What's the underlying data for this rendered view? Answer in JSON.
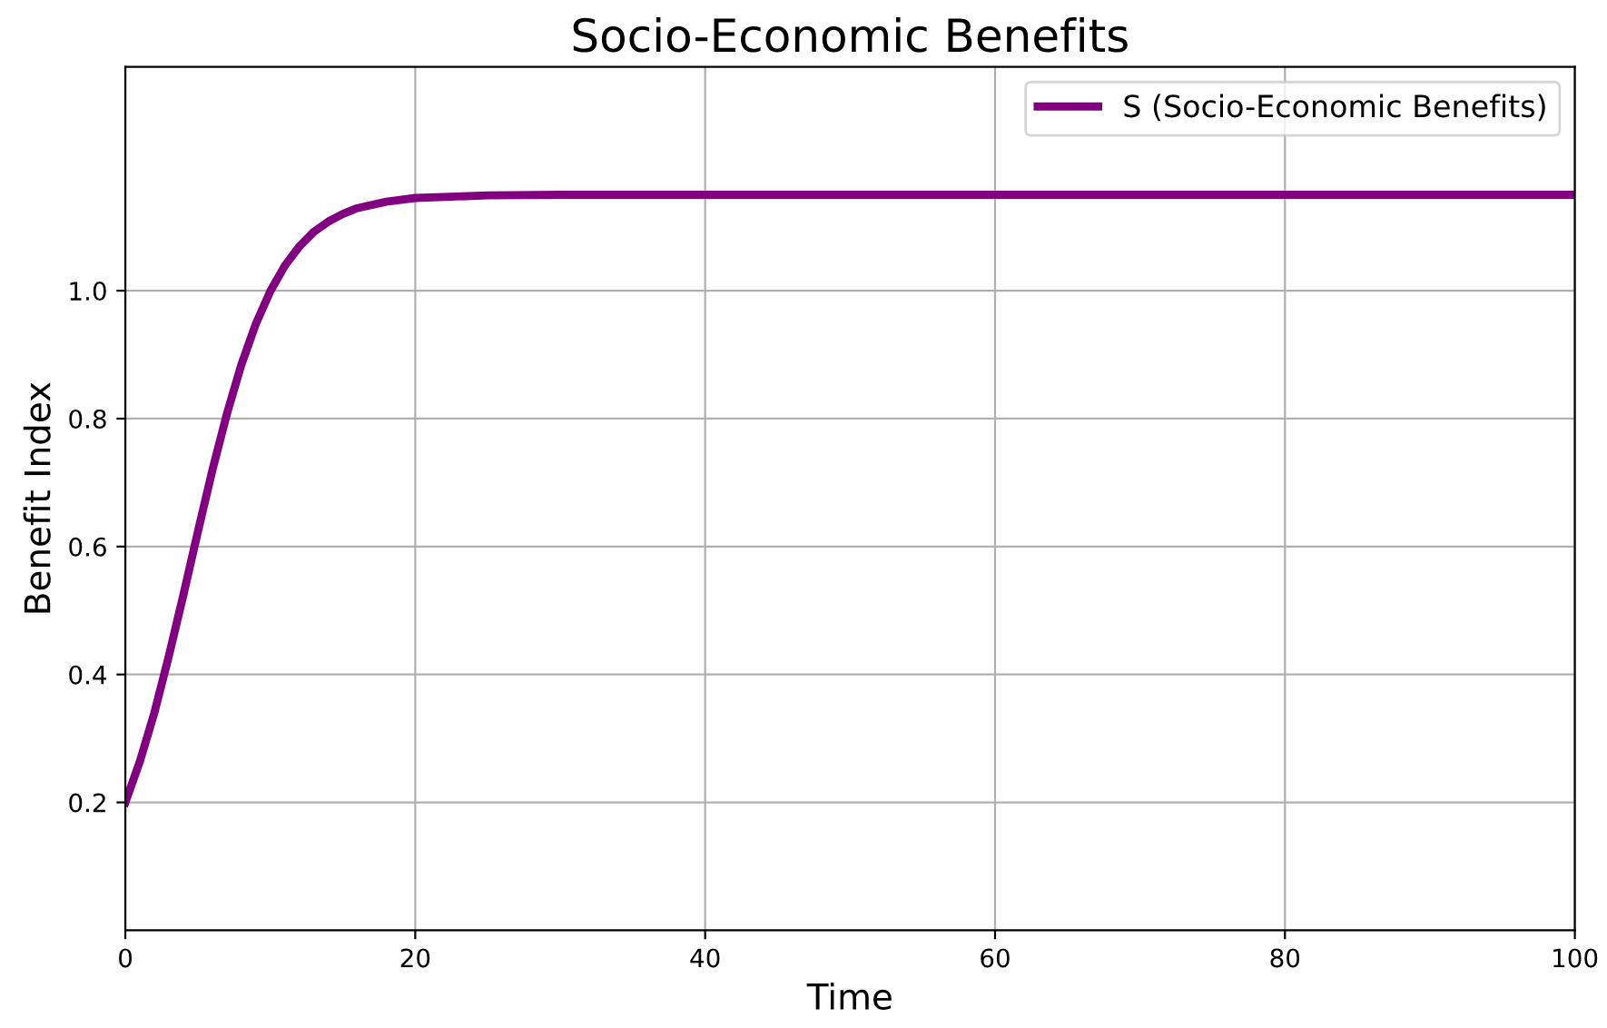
{
  "chart_data": {
    "type": "line",
    "title": "Socio-Economic Benefits",
    "xlabel": "Time",
    "ylabel": "Benefit Index",
    "x": [
      0,
      1,
      2,
      3,
      4,
      5,
      6,
      7,
      8,
      9,
      10,
      11,
      12,
      13,
      14,
      15,
      16,
      18,
      20,
      25,
      30,
      40,
      50,
      60,
      70,
      80,
      90,
      100
    ],
    "series": [
      {
        "name": "S (Socio-Economic Benefits)",
        "color": "#800080",
        "values": [
          0.2,
          0.264,
          0.34,
          0.429,
          0.524,
          0.623,
          0.719,
          0.807,
          0.884,
          0.948,
          0.999,
          1.039,
          1.069,
          1.092,
          1.108,
          1.12,
          1.129,
          1.139,
          1.145,
          1.149,
          1.15,
          1.15,
          1.15,
          1.15,
          1.15,
          1.15,
          1.15,
          1.15
        ]
      }
    ],
    "xlim": [
      0,
      100
    ],
    "xticks": [
      0,
      20,
      40,
      60,
      80,
      100
    ],
    "ylim": [
      0,
      1.35
    ],
    "yticks": [
      0.2,
      0.4,
      0.6,
      0.8,
      {
        "value": 1,
        "label": "1.0"
      }
    ],
    "grid": true,
    "legend": "top right",
    "line_style": "solid",
    "marker": "none"
  }
}
